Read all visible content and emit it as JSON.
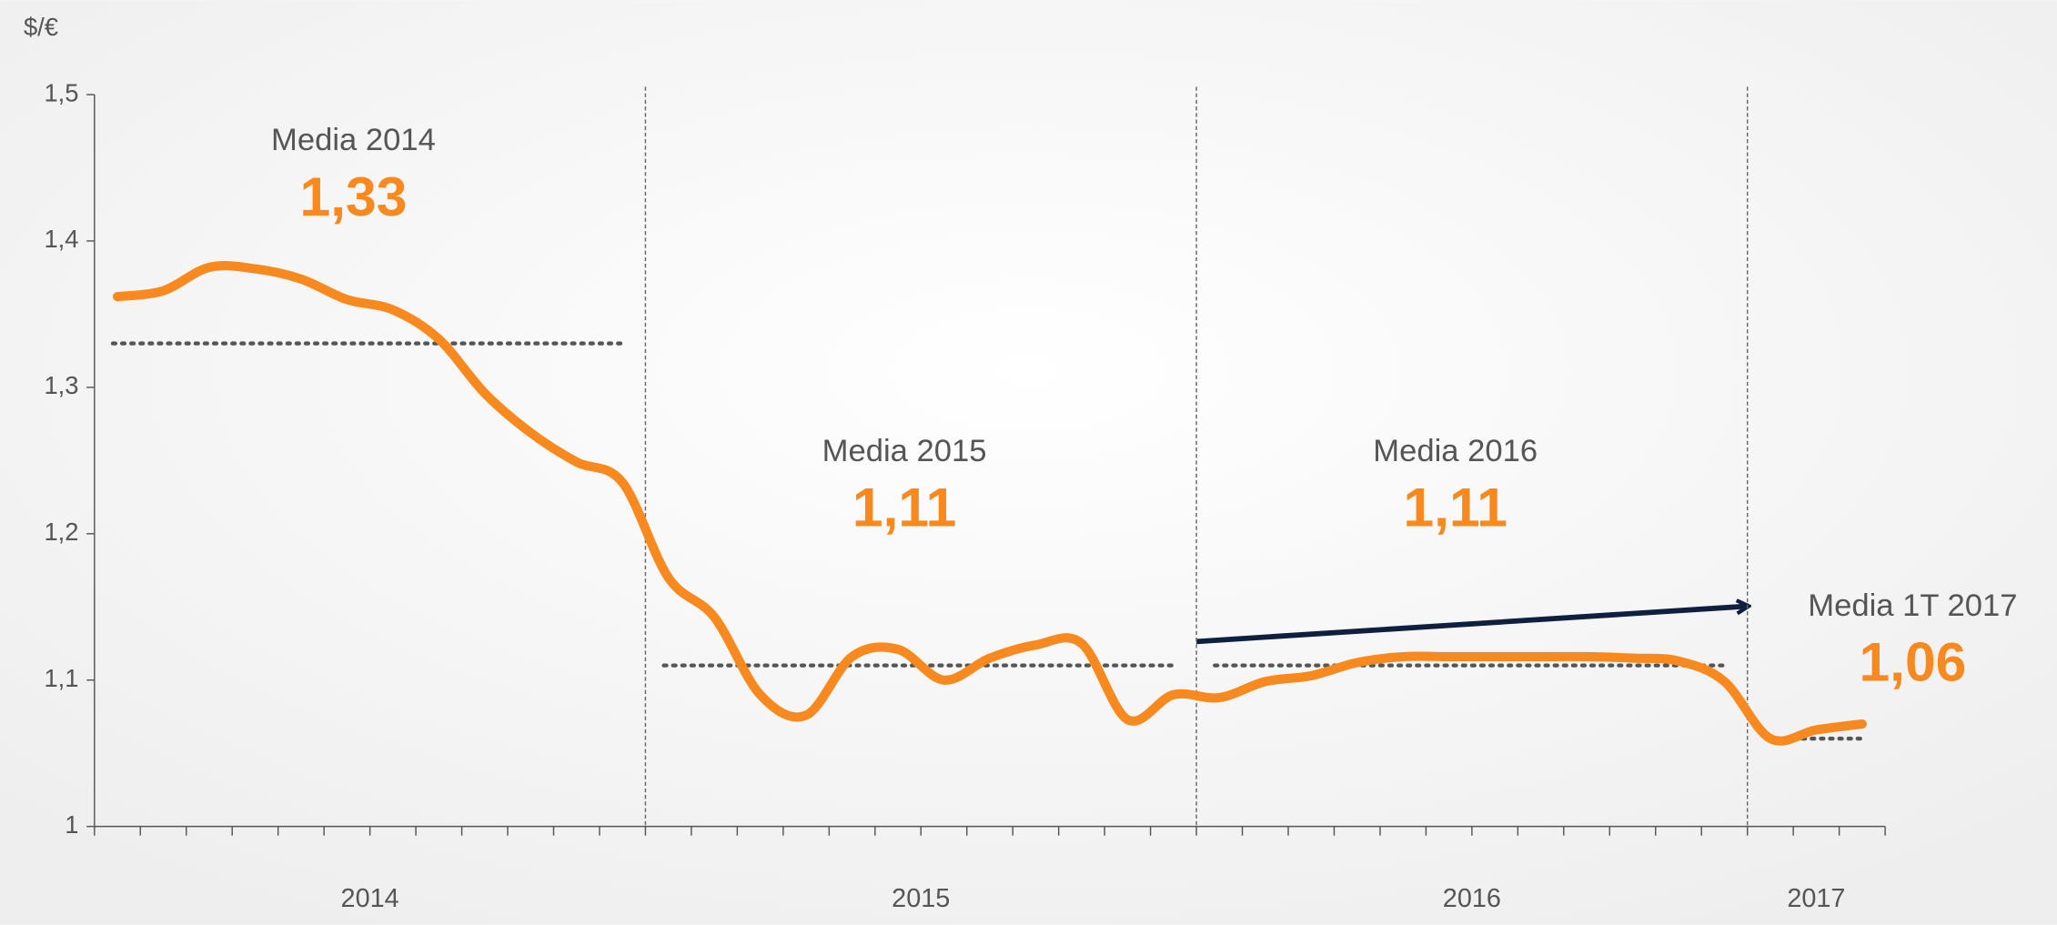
{
  "chart_data": {
    "type": "line",
    "y_label": "$/€",
    "ylim": [
      1,
      1.5
    ],
    "yticks": [
      1,
      {
        "value": 1.1,
        "label": "1,1"
      },
      {
        "value": 1.2,
        "label": "1,2"
      },
      {
        "value": 1.3,
        "label": "1,3"
      },
      {
        "value": 1.4,
        "label": "1,4"
      },
      {
        "value": 1.5,
        "label": "1,5"
      }
    ],
    "groups": [
      {
        "label": "2014",
        "months": 12
      },
      {
        "label": "2015",
        "months": 12
      },
      {
        "label": "2016",
        "months": 12
      },
      {
        "label": "2017",
        "months": 3
      }
    ],
    "series": [
      {
        "color": "#f7891f",
        "values": [
          1.362,
          1.366,
          1.382,
          1.381,
          1.374,
          1.36,
          1.353,
          1.333,
          1.296,
          1.269,
          1.249,
          1.235,
          1.17,
          1.143,
          1.09,
          1.076,
          1.116,
          1.121,
          1.1,
          1.115,
          1.124,
          1.125,
          1.073,
          1.09,
          1.088,
          1.099,
          1.103,
          1.112,
          1.116,
          1.116,
          1.116,
          1.116,
          1.116,
          1.115,
          1.113,
          1.099,
          1.06,
          1.066,
          1.07
        ]
      }
    ],
    "averages": [
      {
        "label": "Media 2014",
        "value": 1.33,
        "value_label": "1,33"
      },
      {
        "label": "Media 2015",
        "value": 1.11,
        "value_label": "1,11"
      },
      {
        "label": "Media 2016",
        "value": 1.11,
        "value_label": "1,11"
      },
      {
        "label": "Media 1T 2017",
        "value": 1.06,
        "value_label": "1,06"
      }
    ]
  }
}
